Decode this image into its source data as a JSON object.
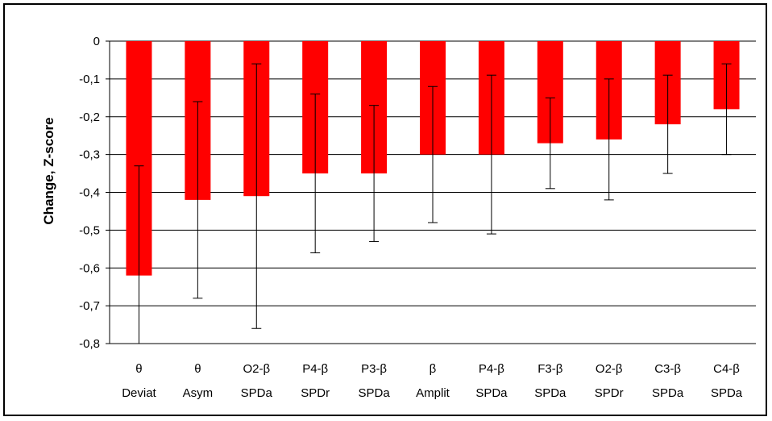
{
  "chart_data": {
    "type": "bar",
    "title": "",
    "xlabel": "",
    "ylabel": "Change, Z-score",
    "ylim": [
      -0.8,
      0
    ],
    "yticks": [
      "0",
      "-0,1",
      "-0,2",
      "-0,3",
      "-0,4",
      "-0,5",
      "-0,6",
      "-0,7",
      "-0,8"
    ],
    "grid": true,
    "legend": "none",
    "bar_color": "#ff0000",
    "categories": [
      [
        "θ",
        "Deviat"
      ],
      [
        "θ",
        "Asym"
      ],
      [
        "O2-β",
        "SPDa"
      ],
      [
        "P4-β",
        "SPDr"
      ],
      [
        "P3-β",
        "SPDa"
      ],
      [
        "β",
        "Amplit"
      ],
      [
        "P4-β",
        "SPDa"
      ],
      [
        "F3-β",
        "SPDa"
      ],
      [
        "O2-β",
        "SPDr"
      ],
      [
        "C3-β",
        "SPDa"
      ],
      [
        "C4-β",
        "SPDa"
      ]
    ],
    "values": [
      -0.62,
      -0.42,
      -0.41,
      -0.35,
      -0.35,
      -0.3,
      -0.3,
      -0.27,
      -0.26,
      -0.22,
      -0.18
    ],
    "error_low": [
      -0.81,
      -0.68,
      -0.76,
      -0.56,
      -0.53,
      -0.48,
      -0.51,
      -0.39,
      -0.42,
      -0.35,
      -0.3
    ],
    "error_high": [
      -0.33,
      -0.16,
      -0.06,
      -0.14,
      -0.17,
      -0.12,
      -0.09,
      -0.15,
      -0.1,
      -0.09,
      -0.06
    ]
  }
}
